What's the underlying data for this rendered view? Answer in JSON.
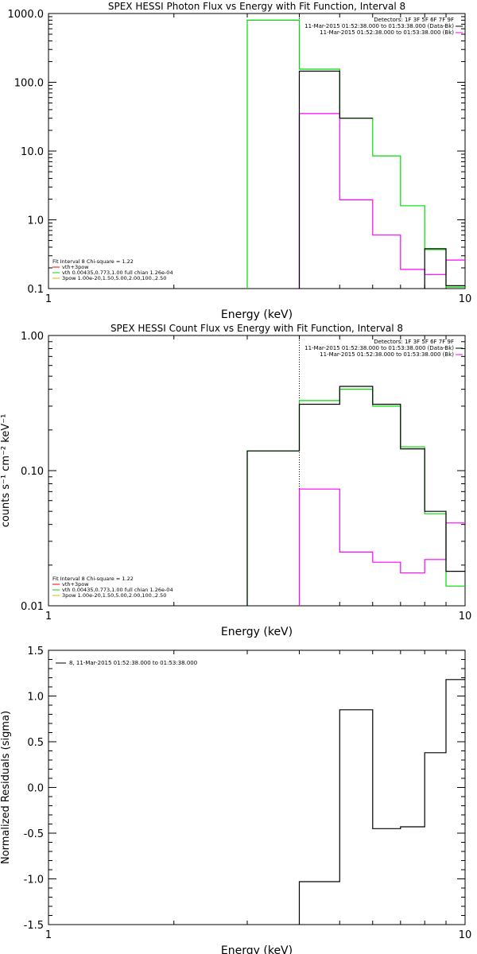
{
  "chart_data": [
    {
      "type": "line",
      "step": true,
      "title": "SPEX HESSI Photon Flux vs Energy with Fit Function, Interval 8",
      "xlabel": "Energy (keV)",
      "ylabel": "",
      "xscale": "log",
      "yscale": "log",
      "xlim": [
        1,
        10
      ],
      "ylim": [
        0.1,
        1000
      ],
      "xticks": [
        {
          "v": 1,
          "label": "1"
        },
        {
          "v": 10,
          "label": "10"
        }
      ],
      "yticks": [
        {
          "v": 0.1,
          "label": "0.1"
        },
        {
          "v": 1,
          "label": "1.0"
        },
        {
          "v": 10,
          "label": "10.0"
        },
        {
          "v": 100,
          "label": "100.0"
        },
        {
          "v": 1000,
          "label": "1000.0"
        }
      ],
      "vline_keV": 4.0,
      "legend_topright": [
        "Detectors: 1F 3F 5F 6F 7F 9F",
        "11-Mar-2015 01:52:38.000 to 01:53:38.000 (Data-Bk)",
        "11-Mar-2015 01:52:38.000 to 01:53:38.000 (Bk)"
      ],
      "legend_bottomleft": [
        {
          "text": "Fit Interval 8   Chi-square = 1.22",
          "color": ""
        },
        {
          "text": "vth+3pow",
          "color": "#ff0000"
        },
        {
          "text": "vth 0.00435,0.773,1.00  full chian 1.26e-04",
          "color": "#00dd00"
        },
        {
          "text": "3pow 1.00e-20,1.50,5.00,2.00,100.,2.50",
          "color": "#ddbb00"
        }
      ],
      "series": [
        {
          "name": "11-Mar-2015 01:52:38.000 to 01:53:38.000 (Data-Bk)",
          "color": "#000000",
          "edges": [
            4.0,
            5.0,
            6.0,
            7.0,
            8.0,
            9.0,
            10.0
          ],
          "values": [
            145,
            30,
            null,
            null,
            0.38,
            0.11
          ]
        },
        {
          "name": "11-Mar-2015 01:52:38.000 to 01:53:38.000 (Bk)",
          "color": "#ff00ff",
          "edges": [
            4.0,
            5.0,
            6.0,
            7.0,
            8.0,
            9.0,
            10.0
          ],
          "values": [
            35,
            1.95,
            0.6,
            0.19,
            0.16,
            0.26
          ]
        },
        {
          "name": "vth+3pow",
          "color": "#00dd00",
          "edges": [
            3.0,
            4.0,
            5.0,
            6.0,
            7.0,
            8.0,
            9.0,
            10.0
          ],
          "values": [
            800,
            155,
            30,
            8.5,
            1.6,
            0.37,
            0.105
          ]
        }
      ]
    },
    {
      "type": "line",
      "step": true,
      "title": "SPEX HESSI Count Flux vs Energy with Fit Function, Interval 8",
      "xlabel": "Energy (keV)",
      "ylabel": "counts s⁻¹ cm⁻² keV⁻¹",
      "xscale": "log",
      "yscale": "log",
      "xlim": [
        1,
        10
      ],
      "ylim": [
        0.01,
        1.0
      ],
      "xticks": [
        {
          "v": 1,
          "label": "1"
        },
        {
          "v": 10,
          "label": "10"
        }
      ],
      "yticks": [
        {
          "v": 0.01,
          "label": "0.01"
        },
        {
          "v": 0.1,
          "label": "0.10"
        },
        {
          "v": 1,
          "label": "1.00"
        }
      ],
      "vline_keV": 4.0,
      "legend_topright": [
        "Detectors: 1F 3F 5F 6F 7F 9F",
        "11-Mar-2015 01:52:38.000 to 01:53:38.000 (Data-Bk)",
        "11-Mar-2015 01:52:38.000 to 01:53:38.000 (Bk)"
      ],
      "legend_bottomleft": [
        {
          "text": "Fit Interval 8   Chi-square = 1.22",
          "color": ""
        },
        {
          "text": "vth+3pow",
          "color": "#ff0000"
        },
        {
          "text": "vth 0.00435,0.773,1.00  full chian 1.26e-04",
          "color": "#00dd00"
        },
        {
          "text": "3pow 1.00e-20,1.50,5.00,2.00,100.,2.50",
          "color": "#ddbb00"
        }
      ],
      "series": [
        {
          "name": "11-Mar-2015 01:52:38.000 to 01:53:38.000 (Data-Bk)",
          "color": "#000000",
          "edges": [
            3.0,
            4.0,
            5.0,
            6.0,
            7.0,
            8.0,
            9.0,
            10.0
          ],
          "values": [
            0.14,
            0.31,
            0.42,
            0.31,
            0.145,
            0.05,
            0.018
          ]
        },
        {
          "name": "11-Mar-2015 01:52:38.000 to 01:53:38.000 (Bk)",
          "color": "#ff00ff",
          "edges": [
            4.0,
            5.0,
            6.0,
            7.0,
            8.0,
            9.0,
            10.0
          ],
          "values": [
            0.073,
            0.025,
            0.021,
            0.0175,
            0.022,
            0.041
          ]
        },
        {
          "name": "vth+3pow",
          "color": "#00dd00",
          "edges": [
            3.0,
            4.0,
            5.0,
            6.0,
            7.0,
            8.0,
            9.0,
            10.0
          ],
          "values": [
            0.14,
            0.33,
            0.4,
            0.3,
            0.15,
            0.048,
            0.014
          ]
        }
      ]
    },
    {
      "type": "line",
      "step": true,
      "title": "",
      "xlabel": "Energy (keV)",
      "ylabel": "Normalized Residuals (sigma)",
      "xscale": "log",
      "yscale": "linear",
      "xlim": [
        1,
        10
      ],
      "ylim": [
        -1.5,
        1.5
      ],
      "xticks": [
        {
          "v": 1,
          "label": "1"
        },
        {
          "v": 10,
          "label": "10"
        }
      ],
      "yticks": [
        {
          "v": -1.5,
          "label": "-1.5"
        },
        {
          "v": -1.0,
          "label": "-1.0"
        },
        {
          "v": -0.5,
          "label": "-0.5"
        },
        {
          "v": 0.0,
          "label": "0.0"
        },
        {
          "v": 0.5,
          "label": "0.5"
        },
        {
          "v": 1.0,
          "label": "1.0"
        },
        {
          "v": 1.5,
          "label": "1.5"
        }
      ],
      "legend_topleft": [
        "8, 11-Mar-2015 01:52:38.000 to 01:53:38.000"
      ],
      "series": [
        {
          "name": "8, 11-Mar-2015 01:52:38.000 to 01:53:38.000",
          "color": "#000000",
          "edges": [
            4.0,
            5.0,
            6.0,
            7.0,
            8.0,
            9.0,
            10.0
          ],
          "values": [
            -1.03,
            0.85,
            -0.45,
            -0.43,
            0.38,
            1.18
          ]
        }
      ]
    }
  ]
}
